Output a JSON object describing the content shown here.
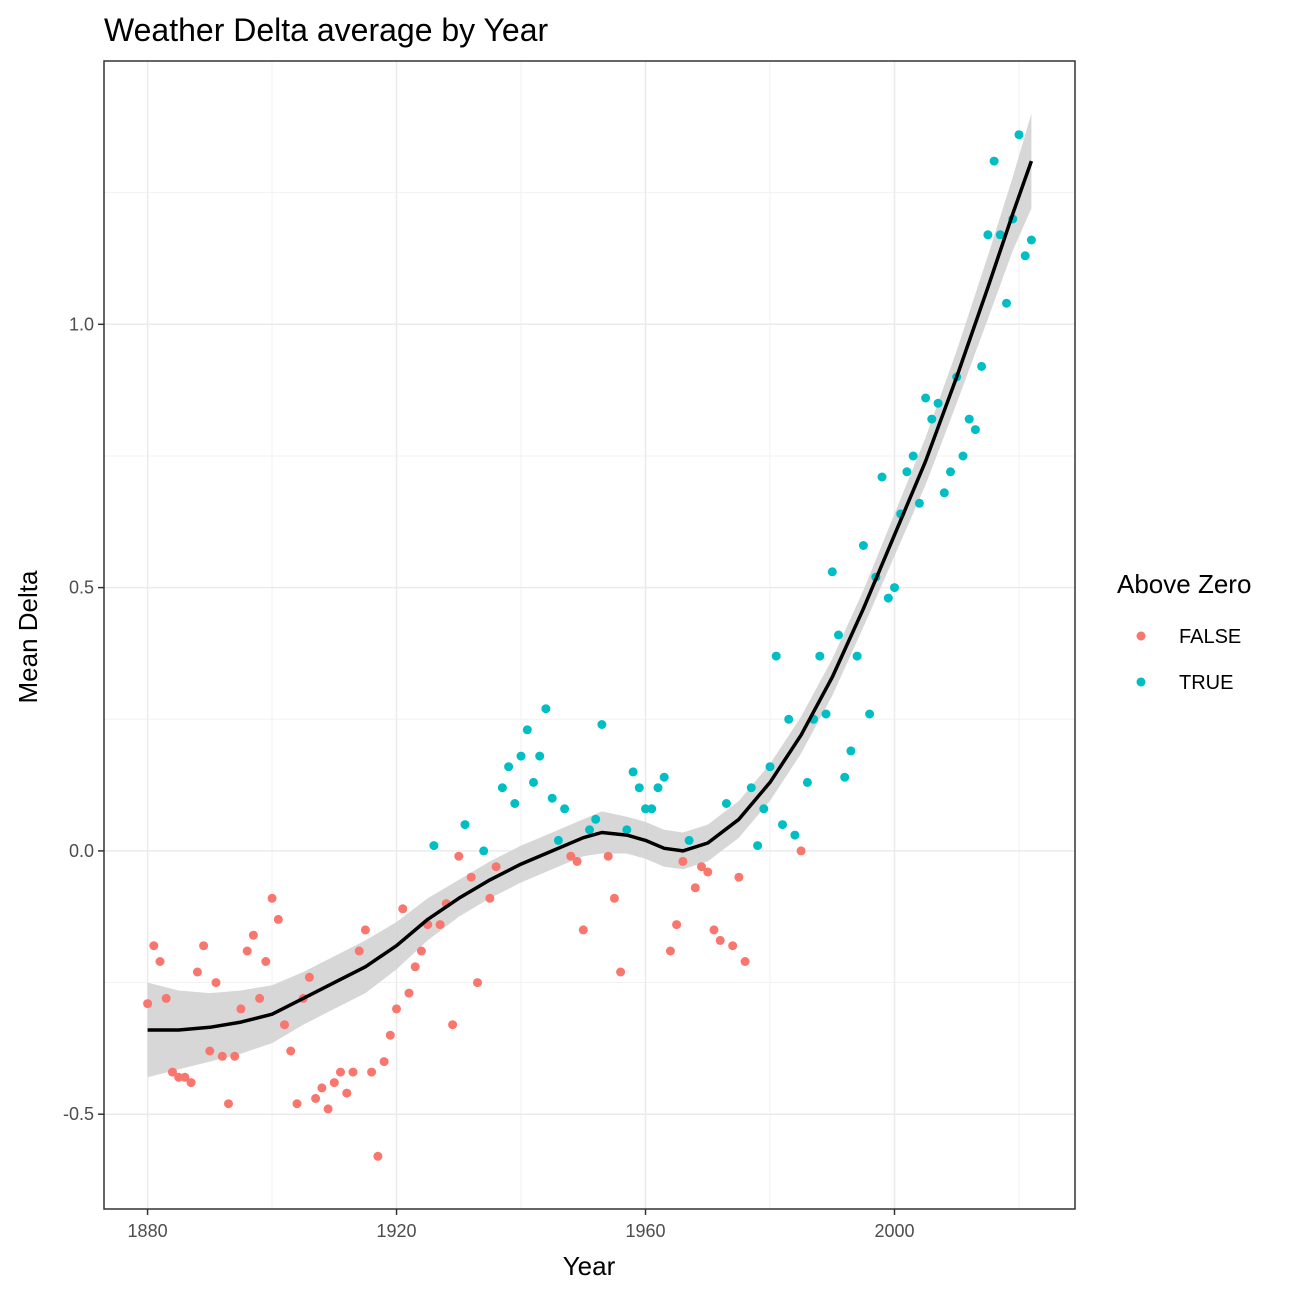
{
  "chart_data": {
    "type": "scatter",
    "title": "Weather Delta average by Year",
    "xlabel": "Year",
    "ylabel": "Mean Delta",
    "xlim": [
      1873,
      2029
    ],
    "ylim": [
      -0.68,
      1.5
    ],
    "x_ticks": [
      1880,
      1920,
      1960,
      2000
    ],
    "x_tick_labels": [
      "1880",
      "1920",
      "1960",
      "2000"
    ],
    "y_ticks": [
      -0.5,
      0.0,
      0.5,
      1.0
    ],
    "y_tick_labels": [
      "-0.5",
      "0.0",
      "0.5",
      "1.0"
    ],
    "x_minor": [
      1900,
      1940,
      1980,
      2020
    ],
    "y_minor": [
      -0.25,
      0.25,
      0.75,
      1.25
    ],
    "grid": true,
    "legend": {
      "title": "Above Zero",
      "position": "right",
      "entries": [
        {
          "label": "FALSE",
          "color": "#F8766D"
        },
        {
          "label": "TRUE",
          "color": "#00BFC4"
        }
      ]
    },
    "series": [
      {
        "name": "FALSE",
        "color": "#F8766D",
        "points": [
          [
            1880,
            -0.29
          ],
          [
            1881,
            -0.18
          ],
          [
            1882,
            -0.21
          ],
          [
            1883,
            -0.28
          ],
          [
            1884,
            -0.42
          ],
          [
            1885,
            -0.43
          ],
          [
            1886,
            -0.43
          ],
          [
            1887,
            -0.44
          ],
          [
            1888,
            -0.23
          ],
          [
            1889,
            -0.18
          ],
          [
            1890,
            -0.38
          ],
          [
            1891,
            -0.25
          ],
          [
            1892,
            -0.39
          ],
          [
            1893,
            -0.48
          ],
          [
            1894,
            -0.39
          ],
          [
            1895,
            -0.3
          ],
          [
            1896,
            -0.19
          ],
          [
            1897,
            -0.16
          ],
          [
            1898,
            -0.28
          ],
          [
            1899,
            -0.21
          ],
          [
            1900,
            -0.09
          ],
          [
            1901,
            -0.13
          ],
          [
            1902,
            -0.33
          ],
          [
            1903,
            -0.38
          ],
          [
            1904,
            -0.48
          ],
          [
            1905,
            -0.28
          ],
          [
            1906,
            -0.24
          ],
          [
            1907,
            -0.47
          ],
          [
            1908,
            -0.45
          ],
          [
            1909,
            -0.49
          ],
          [
            1910,
            -0.44
          ],
          [
            1911,
            -0.42
          ],
          [
            1912,
            -0.46
          ],
          [
            1913,
            -0.42
          ],
          [
            1914,
            -0.19
          ],
          [
            1915,
            -0.15
          ],
          [
            1916,
            -0.42
          ],
          [
            1917,
            -0.58
          ],
          [
            1918,
            -0.4
          ],
          [
            1919,
            -0.35
          ],
          [
            1920,
            -0.3
          ],
          [
            1921,
            -0.11
          ],
          [
            1922,
            -0.27
          ],
          [
            1923,
            -0.22
          ],
          [
            1924,
            -0.19
          ],
          [
            1925,
            -0.14
          ],
          [
            1927,
            -0.14
          ],
          [
            1928,
            -0.1
          ],
          [
            1929,
            -0.33
          ],
          [
            1930,
            -0.01
          ],
          [
            1932,
            -0.05
          ],
          [
            1933,
            -0.25
          ],
          [
            1935,
            -0.09
          ],
          [
            1936,
            -0.03
          ],
          [
            1948,
            -0.01
          ],
          [
            1949,
            -0.02
          ],
          [
            1950,
            -0.15
          ],
          [
            1954,
            -0.01
          ],
          [
            1955,
            -0.09
          ],
          [
            1956,
            -0.23
          ],
          [
            1964,
            -0.19
          ],
          [
            1965,
            -0.14
          ],
          [
            1966,
            -0.02
          ],
          [
            1968,
            -0.07
          ],
          [
            1969,
            -0.03
          ],
          [
            1970,
            -0.04
          ],
          [
            1971,
            -0.15
          ],
          [
            1972,
            -0.17
          ],
          [
            1974,
            -0.18
          ],
          [
            1975,
            -0.05
          ],
          [
            1976,
            -0.21
          ],
          [
            1985,
            0.0
          ]
        ]
      },
      {
        "name": "TRUE",
        "color": "#00BFC4",
        "points": [
          [
            1926,
            0.01
          ],
          [
            1931,
            0.05
          ],
          [
            1934,
            0.0
          ],
          [
            1937,
            0.12
          ],
          [
            1938,
            0.16
          ],
          [
            1939,
            0.09
          ],
          [
            1940,
            0.18
          ],
          [
            1941,
            0.23
          ],
          [
            1942,
            0.13
          ],
          [
            1943,
            0.18
          ],
          [
            1944,
            0.27
          ],
          [
            1945,
            0.1
          ],
          [
            1946,
            0.02
          ],
          [
            1947,
            0.08
          ],
          [
            1951,
            0.04
          ],
          [
            1952,
            0.06
          ],
          [
            1953,
            0.24
          ],
          [
            1957,
            0.04
          ],
          [
            1958,
            0.15
          ],
          [
            1959,
            0.12
          ],
          [
            1960,
            0.08
          ],
          [
            1961,
            0.08
          ],
          [
            1962,
            0.12
          ],
          [
            1963,
            0.14
          ],
          [
            1967,
            0.02
          ],
          [
            1973,
            0.09
          ],
          [
            1977,
            0.12
          ],
          [
            1978,
            0.01
          ],
          [
            1979,
            0.08
          ],
          [
            1980,
            0.16
          ],
          [
            1981,
            0.37
          ],
          [
            1982,
            0.05
          ],
          [
            1983,
            0.25
          ],
          [
            1984,
            0.03
          ],
          [
            1986,
            0.13
          ],
          [
            1987,
            0.25
          ],
          [
            1988,
            0.37
          ],
          [
            1989,
            0.26
          ],
          [
            1990,
            0.53
          ],
          [
            1991,
            0.41
          ],
          [
            1992,
            0.14
          ],
          [
            1993,
            0.19
          ],
          [
            1994,
            0.37
          ],
          [
            1995,
            0.58
          ],
          [
            1996,
            0.26
          ],
          [
            1997,
            0.52
          ],
          [
            1998,
            0.71
          ],
          [
            1999,
            0.48
          ],
          [
            2000,
            0.5
          ],
          [
            2001,
            0.64
          ],
          [
            2002,
            0.72
          ],
          [
            2003,
            0.75
          ],
          [
            2004,
            0.66
          ],
          [
            2005,
            0.86
          ],
          [
            2006,
            0.82
          ],
          [
            2007,
            0.85
          ],
          [
            2008,
            0.68
          ],
          [
            2009,
            0.72
          ],
          [
            2010,
            0.9
          ],
          [
            2011,
            0.75
          ],
          [
            2012,
            0.82
          ],
          [
            2013,
            0.8
          ],
          [
            2014,
            0.92
          ],
          [
            2015,
            1.17
          ],
          [
            2016,
            1.31
          ],
          [
            2017,
            1.17
          ],
          [
            2018,
            1.04
          ],
          [
            2019,
            1.2
          ],
          [
            2020,
            1.36
          ],
          [
            2021,
            1.13
          ],
          [
            2022,
            1.16
          ]
        ]
      }
    ],
    "smooth": {
      "color": "#000000",
      "band_color": "#d3d3d3",
      "points": [
        [
          1880,
          -0.34,
          -0.25,
          -0.43
        ],
        [
          1885,
          -0.34,
          -0.265,
          -0.415
        ],
        [
          1890,
          -0.335,
          -0.27,
          -0.4
        ],
        [
          1895,
          -0.325,
          -0.265,
          -0.385
        ],
        [
          1900,
          -0.31,
          -0.255,
          -0.365
        ],
        [
          1905,
          -0.28,
          -0.23,
          -0.33
        ],
        [
          1910,
          -0.25,
          -0.2,
          -0.3
        ],
        [
          1915,
          -0.22,
          -0.17,
          -0.27
        ],
        [
          1920,
          -0.18,
          -0.135,
          -0.225
        ],
        [
          1925,
          -0.13,
          -0.09,
          -0.17
        ],
        [
          1930,
          -0.09,
          -0.055,
          -0.125
        ],
        [
          1935,
          -0.055,
          -0.02,
          -0.09
        ],
        [
          1940,
          -0.025,
          0.01,
          -0.06
        ],
        [
          1945,
          0.0,
          0.035,
          -0.035
        ],
        [
          1950,
          0.025,
          0.06,
          -0.01
        ],
        [
          1953,
          0.035,
          0.075,
          -0.005
        ],
        [
          1957,
          0.03,
          0.065,
          -0.005
        ],
        [
          1960,
          0.02,
          0.055,
          -0.015
        ],
        [
          1963,
          0.005,
          0.04,
          -0.03
        ],
        [
          1966,
          0.0,
          0.035,
          -0.035
        ],
        [
          1970,
          0.015,
          0.05,
          -0.02
        ],
        [
          1975,
          0.06,
          0.095,
          0.025
        ],
        [
          1980,
          0.13,
          0.165,
          0.095
        ],
        [
          1985,
          0.22,
          0.255,
          0.185
        ],
        [
          1990,
          0.33,
          0.365,
          0.295
        ],
        [
          1995,
          0.46,
          0.495,
          0.425
        ],
        [
          2000,
          0.6,
          0.64,
          0.56
        ],
        [
          2005,
          0.74,
          0.785,
          0.695
        ],
        [
          2010,
          0.9,
          0.95,
          0.85
        ],
        [
          2015,
          1.07,
          1.13,
          1.01
        ],
        [
          2019,
          1.21,
          1.28,
          1.14
        ],
        [
          2022,
          1.31,
          1.4,
          1.22
        ]
      ]
    }
  }
}
